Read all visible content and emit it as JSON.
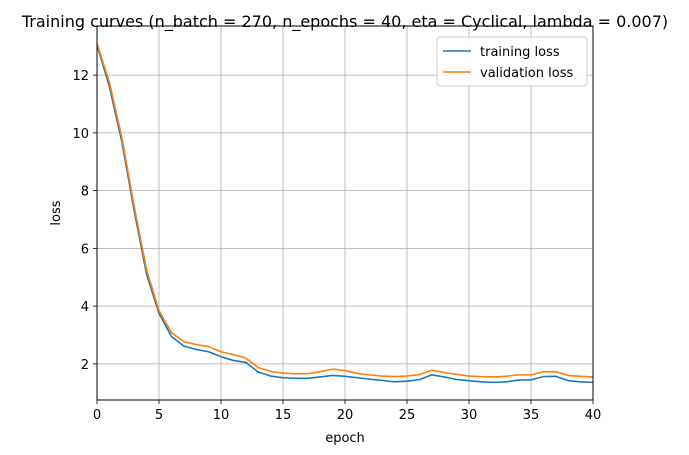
{
  "chart_data": {
    "type": "line",
    "title": "Training curves (n_batch = 270, n_epochs = 40, eta = Cyclical, lambda = 0.007)",
    "xlabel": "epoch",
    "ylabel": "loss",
    "xlim": [
      0,
      40
    ],
    "ylim": [
      0.75,
      13.7
    ],
    "xticks": [
      0,
      5,
      10,
      15,
      20,
      25,
      30,
      35,
      40
    ],
    "yticks": [
      2,
      4,
      6,
      8,
      10,
      12
    ],
    "grid": true,
    "legend_position": "top-right",
    "x": [
      0,
      1,
      2,
      3,
      4,
      5,
      6,
      7,
      8,
      9,
      10,
      11,
      12,
      13,
      14,
      15,
      16,
      17,
      18,
      19,
      20,
      21,
      22,
      23,
      24,
      25,
      26,
      27,
      28,
      29,
      30,
      31,
      32,
      33,
      34,
      35,
      36,
      37,
      38,
      39,
      40
    ],
    "series": [
      {
        "name": "training loss",
        "color": "#1f77b4",
        "values": [
          13.05,
          11.6,
          9.7,
          7.3,
          5.1,
          3.75,
          2.95,
          2.62,
          2.5,
          2.42,
          2.25,
          2.12,
          2.05,
          1.72,
          1.58,
          1.52,
          1.5,
          1.5,
          1.55,
          1.6,
          1.57,
          1.52,
          1.47,
          1.43,
          1.38,
          1.4,
          1.46,
          1.62,
          1.55,
          1.46,
          1.42,
          1.38,
          1.36,
          1.38,
          1.44,
          1.45,
          1.56,
          1.57,
          1.42,
          1.38,
          1.36
        ]
      },
      {
        "name": "validation loss",
        "color": "#ff7f0e",
        "values": [
          13.1,
          11.75,
          9.85,
          7.45,
          5.25,
          3.85,
          3.08,
          2.77,
          2.67,
          2.6,
          2.42,
          2.32,
          2.2,
          1.87,
          1.74,
          1.68,
          1.66,
          1.66,
          1.73,
          1.82,
          1.77,
          1.67,
          1.62,
          1.58,
          1.56,
          1.58,
          1.63,
          1.78,
          1.7,
          1.64,
          1.58,
          1.56,
          1.55,
          1.57,
          1.62,
          1.62,
          1.73,
          1.73,
          1.6,
          1.57,
          1.55
        ]
      }
    ]
  }
}
